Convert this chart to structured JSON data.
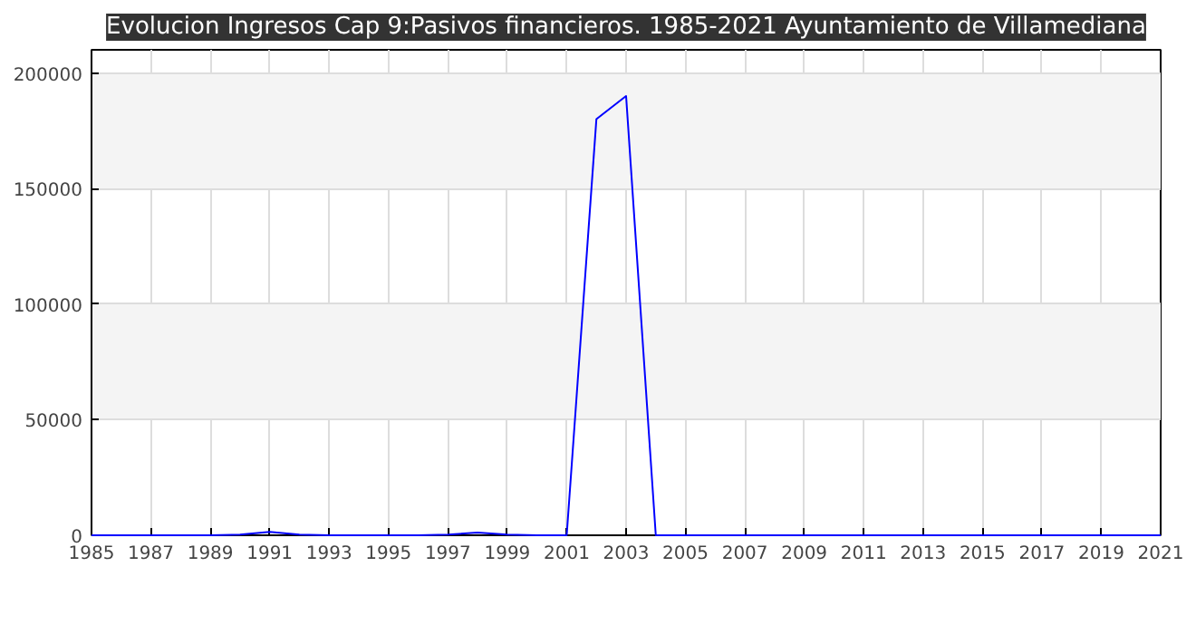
{
  "chart_data": {
    "type": "line",
    "title": "Evolucion Ingresos Cap 9:Pasivos financieros. 1985-2021 Ayuntamiento de Villamediana",
    "x": [
      1985,
      1986,
      1987,
      1988,
      1989,
      1990,
      1991,
      1992,
      1993,
      1994,
      1995,
      1996,
      1997,
      1998,
      1999,
      2000,
      2001,
      2002,
      2003,
      2004,
      2005,
      2006,
      2007,
      2008,
      2009,
      2010,
      2011,
      2012,
      2013,
      2014,
      2015,
      2016,
      2017,
      2018,
      2019,
      2020,
      2021
    ],
    "series": [
      {
        "color": "#0000ff",
        "values": [
          0,
          0,
          0,
          0,
          0,
          300,
          1500,
          300,
          0,
          0,
          0,
          0,
          300,
          1200,
          300,
          0,
          0,
          180000,
          190000,
          0,
          0,
          0,
          0,
          0,
          0,
          0,
          0,
          0,
          0,
          0,
          0,
          0,
          0,
          0,
          0,
          0,
          0
        ]
      }
    ],
    "xlim": [
      1985,
      2021
    ],
    "xticks": [
      1985,
      1987,
      1989,
      1991,
      1993,
      1995,
      1997,
      1999,
      2001,
      2003,
      2005,
      2007,
      2009,
      2011,
      2013,
      2015,
      2017,
      2019,
      2021
    ],
    "ylim": [
      0,
      210000
    ],
    "yticks": [
      0,
      50000,
      100000,
      150000,
      200000
    ],
    "grid": true,
    "marker": "none",
    "line_style": "solid"
  }
}
